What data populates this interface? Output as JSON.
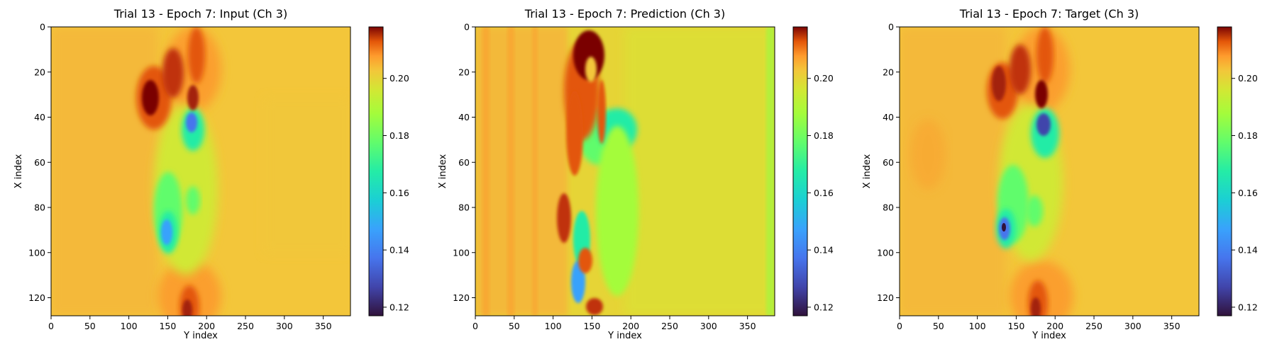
{
  "chart_data": [
    {
      "type": "heatmap",
      "title": "Trial 13 - Epoch 7: Input (Ch 3)",
      "xlabel": "Y index",
      "ylabel": "X index",
      "xlim": [
        0,
        385
      ],
      "ylim": [
        128,
        0
      ],
      "xticks": [
        "0",
        "50",
        "100",
        "150",
        "200",
        "250",
        "300",
        "350"
      ],
      "yticks": [
        "0",
        "20",
        "40",
        "60",
        "80",
        "100",
        "120"
      ],
      "colormap": "turbo",
      "background_value": 0.185,
      "colorbar": {
        "range": [
          0.117,
          0.218
        ],
        "ticks": [
          "0.12",
          "0.14",
          "0.16",
          "0.18",
          "0.20"
        ]
      }
    },
    {
      "type": "heatmap",
      "title": "Trial 13 - Epoch 7: Prediction (Ch 3)",
      "xlabel": "Y index",
      "ylabel": "X index",
      "xlim": [
        0,
        385
      ],
      "ylim": [
        128,
        0
      ],
      "xticks": [
        "0",
        "50",
        "100",
        "150",
        "200",
        "250",
        "300",
        "350"
      ],
      "yticks": [
        "0",
        "20",
        "40",
        "60",
        "80",
        "100",
        "120"
      ],
      "colormap": "turbo",
      "background_value": 0.18,
      "colorbar": {
        "range": [
          0.117,
          0.218
        ],
        "ticks": [
          "0.12",
          "0.14",
          "0.16",
          "0.18",
          "0.20"
        ]
      }
    },
    {
      "type": "heatmap",
      "title": "Trial 13 - Epoch 7: Target (Ch 3)",
      "xlabel": "Y index",
      "ylabel": "X index",
      "xlim": [
        0,
        385
      ],
      "ylim": [
        128,
        0
      ],
      "xticks": [
        "0",
        "50",
        "100",
        "150",
        "200",
        "250",
        "300",
        "350"
      ],
      "yticks": [
        "0",
        "20",
        "40",
        "60",
        "80",
        "100",
        "120"
      ],
      "colormap": "turbo",
      "background_value": 0.185,
      "colorbar": {
        "range": [
          0.117,
          0.218
        ],
        "ticks": [
          "0.12",
          "0.14",
          "0.16",
          "0.18",
          "0.20"
        ]
      }
    }
  ]
}
